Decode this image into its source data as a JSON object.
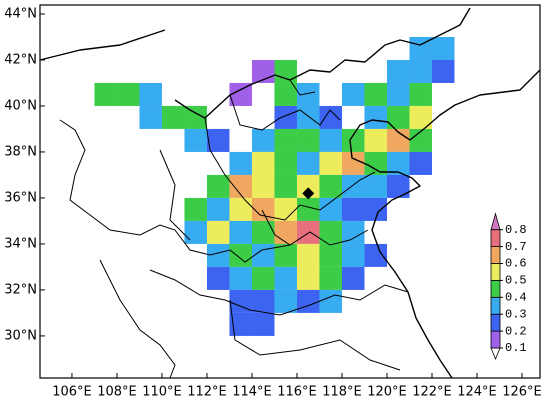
{
  "chart_data": {
    "type": "heatmap",
    "xlim": [
      104.58,
      126.8
    ],
    "ylim": [
      28.17,
      44.39
    ],
    "xticks": [
      {
        "value": 106,
        "label": "106°E"
      },
      {
        "value": 108,
        "label": "108°E"
      },
      {
        "value": 110,
        "label": "110°E"
      },
      {
        "value": 112,
        "label": "112°E"
      },
      {
        "value": 114,
        "label": "114°E"
      },
      {
        "value": 116,
        "label": "116°E"
      },
      {
        "value": 118,
        "label": "118°E"
      },
      {
        "value": 120,
        "label": "120°E"
      },
      {
        "value": 122,
        "label": "122°E"
      },
      {
        "value": 124,
        "label": "124°E"
      },
      {
        "value": 126,
        "label": "126°E"
      }
    ],
    "yticks": [
      {
        "value": 30,
        "label": "30°N"
      },
      {
        "value": 32,
        "label": "32°N"
      },
      {
        "value": 34,
        "label": "34°N"
      },
      {
        "value": 36,
        "label": "36°N"
      },
      {
        "value": 38,
        "label": "38°N"
      },
      {
        "value": 40,
        "label": "40°N"
      },
      {
        "value": 42,
        "label": "42°N"
      },
      {
        "value": 44,
        "label": "44°N"
      }
    ],
    "lons": [
      107,
      108,
      109,
      110,
      111,
      112,
      113,
      114,
      115,
      116,
      117,
      118,
      119,
      120,
      121,
      122
    ],
    "lats": [
      42,
      41,
      40,
      39,
      38,
      37,
      36,
      35,
      34,
      33,
      32,
      31,
      30
    ],
    "values": [
      [
        null,
        null,
        null,
        null,
        null,
        null,
        null,
        null,
        null,
        null,
        null,
        null,
        null,
        null,
        0.35,
        0.35
      ],
      [
        null,
        null,
        null,
        null,
        null,
        null,
        null,
        0.15,
        0.45,
        null,
        null,
        null,
        null,
        0.35,
        0.35,
        0.25
      ],
      [
        0.45,
        0.45,
        0.35,
        null,
        null,
        null,
        0.15,
        null,
        0.45,
        0.35,
        null,
        0.35,
        0.45,
        0.35,
        0.45,
        null
      ],
      [
        null,
        null,
        0.35,
        0.45,
        0.45,
        null,
        null,
        null,
        0.25,
        0.35,
        0.25,
        null,
        0.35,
        0.45,
        0.55,
        null
      ],
      [
        null,
        null,
        null,
        null,
        0.35,
        0.25,
        null,
        0.35,
        0.45,
        0.45,
        0.35,
        0.45,
        0.55,
        0.65,
        0.45,
        null
      ],
      [
        null,
        null,
        null,
        null,
        null,
        null,
        0.35,
        0.55,
        0.45,
        0.35,
        0.55,
        0.65,
        0.45,
        0.35,
        0.25,
        null
      ],
      [
        null,
        null,
        null,
        null,
        null,
        0.45,
        0.65,
        0.55,
        0.45,
        0.55,
        0.45,
        0.35,
        0.35,
        0.25,
        null,
        null
      ],
      [
        null,
        null,
        null,
        null,
        0.45,
        0.35,
        0.55,
        0.65,
        0.55,
        0.45,
        0.35,
        0.25,
        0.25,
        null,
        null,
        null
      ],
      [
        null,
        null,
        null,
        null,
        0.35,
        0.55,
        0.35,
        0.45,
        0.65,
        0.75,
        0.45,
        0.35,
        null,
        null,
        null,
        null
      ],
      [
        null,
        null,
        null,
        null,
        null,
        0.35,
        0.45,
        0.35,
        0.45,
        0.55,
        0.45,
        0.35,
        0.25,
        null,
        null,
        null
      ],
      [
        null,
        null,
        null,
        null,
        null,
        0.25,
        0.35,
        0.45,
        0.35,
        0.55,
        0.45,
        0.25,
        null,
        null,
        null,
        null
      ],
      [
        null,
        null,
        null,
        null,
        null,
        null,
        0.25,
        0.25,
        0.35,
        0.25,
        0.35,
        null,
        null,
        null,
        null,
        null
      ],
      [
        null,
        null,
        null,
        null,
        null,
        null,
        0.25,
        0.25,
        null,
        null,
        null,
        null,
        null,
        null,
        null,
        null
      ]
    ],
    "site": {
      "lon": 116.5,
      "lat": 36.2
    },
    "colorbar": {
      "levels": [
        0.1,
        0.2,
        0.3,
        0.4,
        0.5,
        0.6,
        0.7,
        0.8
      ],
      "colors": [
        "#ffffff",
        "#a060e8",
        "#3c64f0",
        "#38acf0",
        "#3ccc48",
        "#ecec5c",
        "#f0a860",
        "#e8707c",
        "#d078c0"
      ]
    }
  }
}
